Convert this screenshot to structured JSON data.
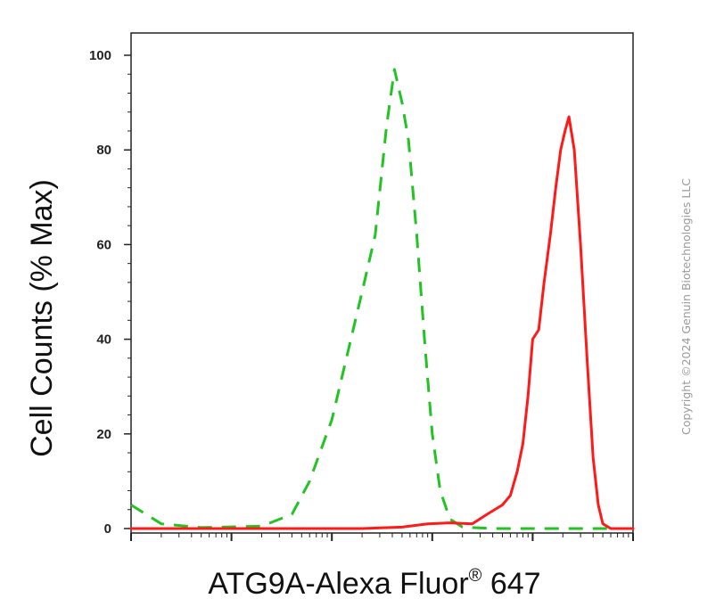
{
  "chart_data": {
    "type": "line",
    "ylabel": "Cell Counts (% Max)",
    "xlabel_main": "ATG9A-Alexa Fluor",
    "xlabel_sup": "®",
    "xlabel_tail": " 647",
    "x_scale": "log",
    "xlim": [
      1,
      100000
    ],
    "ylim": [
      0,
      100
    ],
    "y_ticks": [
      0,
      20,
      40,
      60,
      80,
      100
    ],
    "grid": false,
    "legend": "none",
    "series": [
      {
        "color": "#22c322",
        "style": "dashed",
        "points": [
          [
            1,
            5
          ],
          [
            2,
            1
          ],
          [
            5,
            0.2
          ],
          [
            20,
            0.5
          ],
          [
            40,
            3
          ],
          [
            60,
            10
          ],
          [
            100,
            23
          ],
          [
            200,
            50
          ],
          [
            270,
            62
          ],
          [
            350,
            85
          ],
          [
            420,
            97
          ],
          [
            500,
            90
          ],
          [
            580,
            82
          ],
          [
            700,
            62
          ],
          [
            850,
            38
          ],
          [
            1000,
            20
          ],
          [
            1200,
            8
          ],
          [
            1500,
            2
          ],
          [
            2000,
            0.3
          ],
          [
            4000,
            0
          ],
          [
            100000,
            0
          ]
        ]
      },
      {
        "color": "#ff1a1a",
        "style": "solid",
        "points": [
          [
            1,
            0
          ],
          [
            200,
            0
          ],
          [
            500,
            0.3
          ],
          [
            900,
            1
          ],
          [
            1500,
            1.2
          ],
          [
            2500,
            1
          ],
          [
            3500,
            3
          ],
          [
            5000,
            5
          ],
          [
            6000,
            7
          ],
          [
            7000,
            12
          ],
          [
            8000,
            18
          ],
          [
            9000,
            28
          ],
          [
            10000,
            40
          ],
          [
            11500,
            42
          ],
          [
            13000,
            52
          ],
          [
            15000,
            62
          ],
          [
            17000,
            72
          ],
          [
            19000,
            80
          ],
          [
            21000,
            84
          ],
          [
            23000,
            87
          ],
          [
            26000,
            80
          ],
          [
            30000,
            60
          ],
          [
            35000,
            35
          ],
          [
            40000,
            15
          ],
          [
            45000,
            5
          ],
          [
            50000,
            1
          ],
          [
            60000,
            0
          ],
          [
            100000,
            0
          ]
        ]
      }
    ]
  },
  "copyright": "Copyright ©2024 Genuin Biotechnologies LLC"
}
